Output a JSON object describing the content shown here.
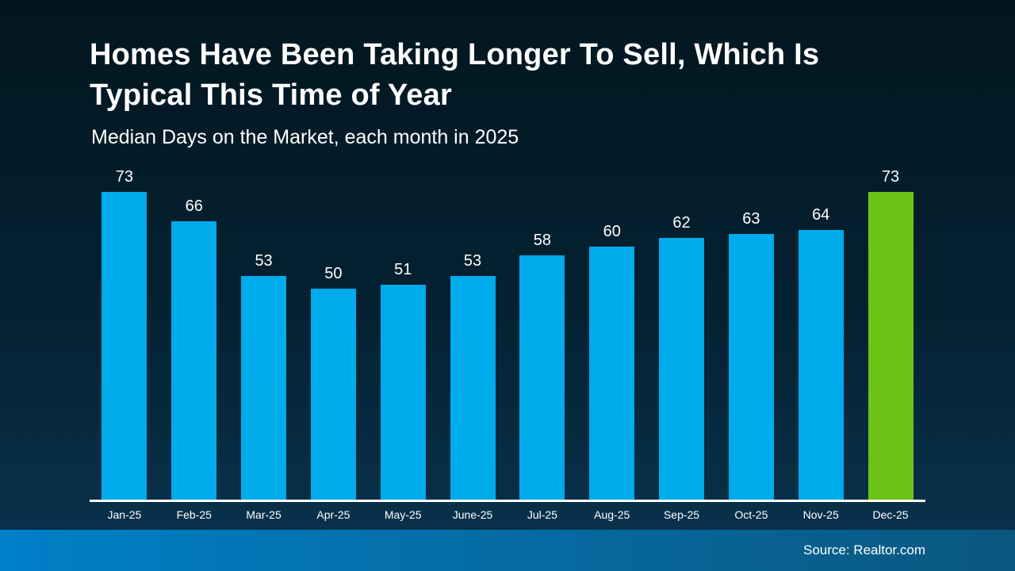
{
  "slide": {
    "title_line1": "Homes Have Been Taking Longer To Sell, Which Is",
    "title_line2": "Typical This Time of Year",
    "subtitle": "Median Days on the Market, each month in 2025",
    "source": "Source: Realtor.com"
  },
  "colors": {
    "bar": "#00ABEB",
    "highlight": "#6CC417",
    "background_top": "#03161F",
    "background_mid": "#042233",
    "background_bottom": "#0A3450",
    "footer_left": "#0080C8",
    "footer_right": "#0A577F",
    "axis_line": "#FFFFFF",
    "text": "#FFFFFF"
  },
  "chart_data": {
    "type": "bar",
    "title": "Homes Have Been Taking Longer To Sell, Which Is Typical This Time of Year",
    "subtitle": "Median Days on the Market, each month in 2025",
    "categories": [
      "Jan-25",
      "Feb-25",
      "Mar-25",
      "Apr-25",
      "May-25",
      "June-25",
      "Jul-25",
      "Aug-25",
      "Sep-25",
      "Oct-25",
      "Nov-25",
      "Dec-25"
    ],
    "values": [
      73,
      66,
      53,
      50,
      51,
      53,
      58,
      60,
      62,
      63,
      64,
      73
    ],
    "xlabel": "",
    "ylabel": "Median days on the market",
    "ylim": [
      0,
      73
    ],
    "grid": false,
    "legend": false,
    "value_labels": true,
    "highlight_index": 11,
    "source": "Source: Realtor.com"
  }
}
